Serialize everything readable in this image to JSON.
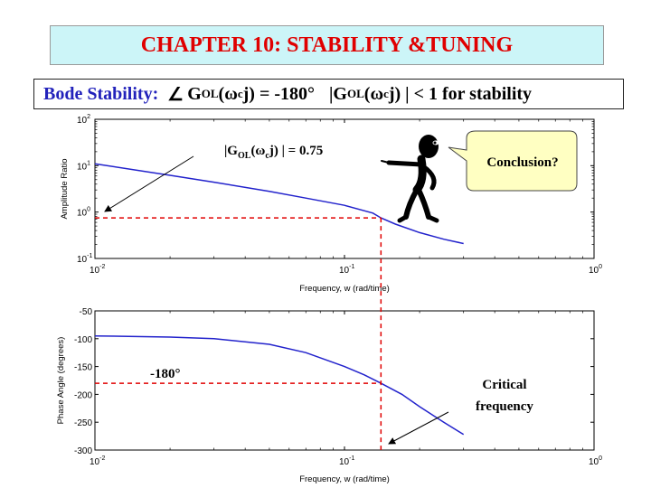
{
  "slide": {
    "title": "CHAPTER 10: STABILITY &TUNING",
    "subtitle": {
      "bode_label": "Bode Stability:",
      "angle_symbol": "∠",
      "g": "G",
      "ol": "OL",
      "omega": "ω",
      "c": "c",
      "j": "j",
      "phase_condition": ") = -180°",
      "abs_open": "|G",
      "abs_close": "j) | < 1 for stability"
    }
  },
  "chart_data": [
    {
      "type": "line",
      "ylabel": "Amplitude Ratio",
      "xlabel": "Frequency, w  (rad/time)",
      "xscale": "log",
      "yscale": "log",
      "xlim": [
        0.01,
        1
      ],
      "ylim": [
        0.1,
        100
      ],
      "x_ticks": [
        {
          "base": "10",
          "exp": "-2"
        },
        {
          "base": "10",
          "exp": "-1"
        },
        {
          "base": "10",
          "exp": "0"
        }
      ],
      "y_ticks": [
        {
          "base": "10",
          "exp": "-1"
        },
        {
          "base": "10",
          "exp": "0"
        },
        {
          "base": "10",
          "exp": "1"
        },
        {
          "base": "10",
          "exp": "2"
        }
      ],
      "line_color": "#2222cc",
      "series": [
        {
          "x": [
            0.01,
            0.02,
            0.03,
            0.05,
            0.07,
            0.1,
            0.13,
            0.14,
            0.16,
            0.2,
            0.25,
            0.3
          ],
          "values": [
            11,
            6.2,
            4.4,
            2.8,
            2.0,
            1.4,
            0.95,
            0.75,
            0.55,
            0.36,
            0.26,
            0.21
          ]
        }
      ],
      "annotations": {
        "amplitude_label_prefix": "|G",
        "amplitude_label_ol": "OL",
        "amplitude_label_mid": "(ω",
        "amplitude_label_c": "c",
        "amplitude_label_end": "j) | = 0.75",
        "amplitude_value": 0.75,
        "critical_frequency": 0.14,
        "callout": "Conclusion?"
      }
    },
    {
      "type": "line",
      "ylabel": "Phase Angle (degrees)",
      "xlabel": "Frequency, w  (rad/time)",
      "xscale": "log",
      "xlim": [
        0.01,
        1
      ],
      "ylim": [
        -300,
        -50
      ],
      "x_ticks": [
        {
          "base": "10",
          "exp": "-2"
        },
        {
          "base": "10",
          "exp": "-1"
        },
        {
          "base": "10",
          "exp": "0"
        }
      ],
      "y_ticks": [
        "-50",
        "-100",
        "-150",
        "-200",
        "-250",
        "-300"
      ],
      "line_color": "#2222cc",
      "series": [
        {
          "x": [
            0.01,
            0.02,
            0.03,
            0.05,
            0.07,
            0.1,
            0.12,
            0.14,
            0.17,
            0.2,
            0.25,
            0.3
          ],
          "values": [
            -95,
            -97,
            -100,
            -110,
            -125,
            -150,
            -165,
            -180,
            -200,
            -222,
            -250,
            -272
          ]
        }
      ],
      "annotations": {
        "phase_label": "-180°",
        "critical_label_line1": "Critical",
        "critical_label_line2": "frequency"
      }
    }
  ]
}
